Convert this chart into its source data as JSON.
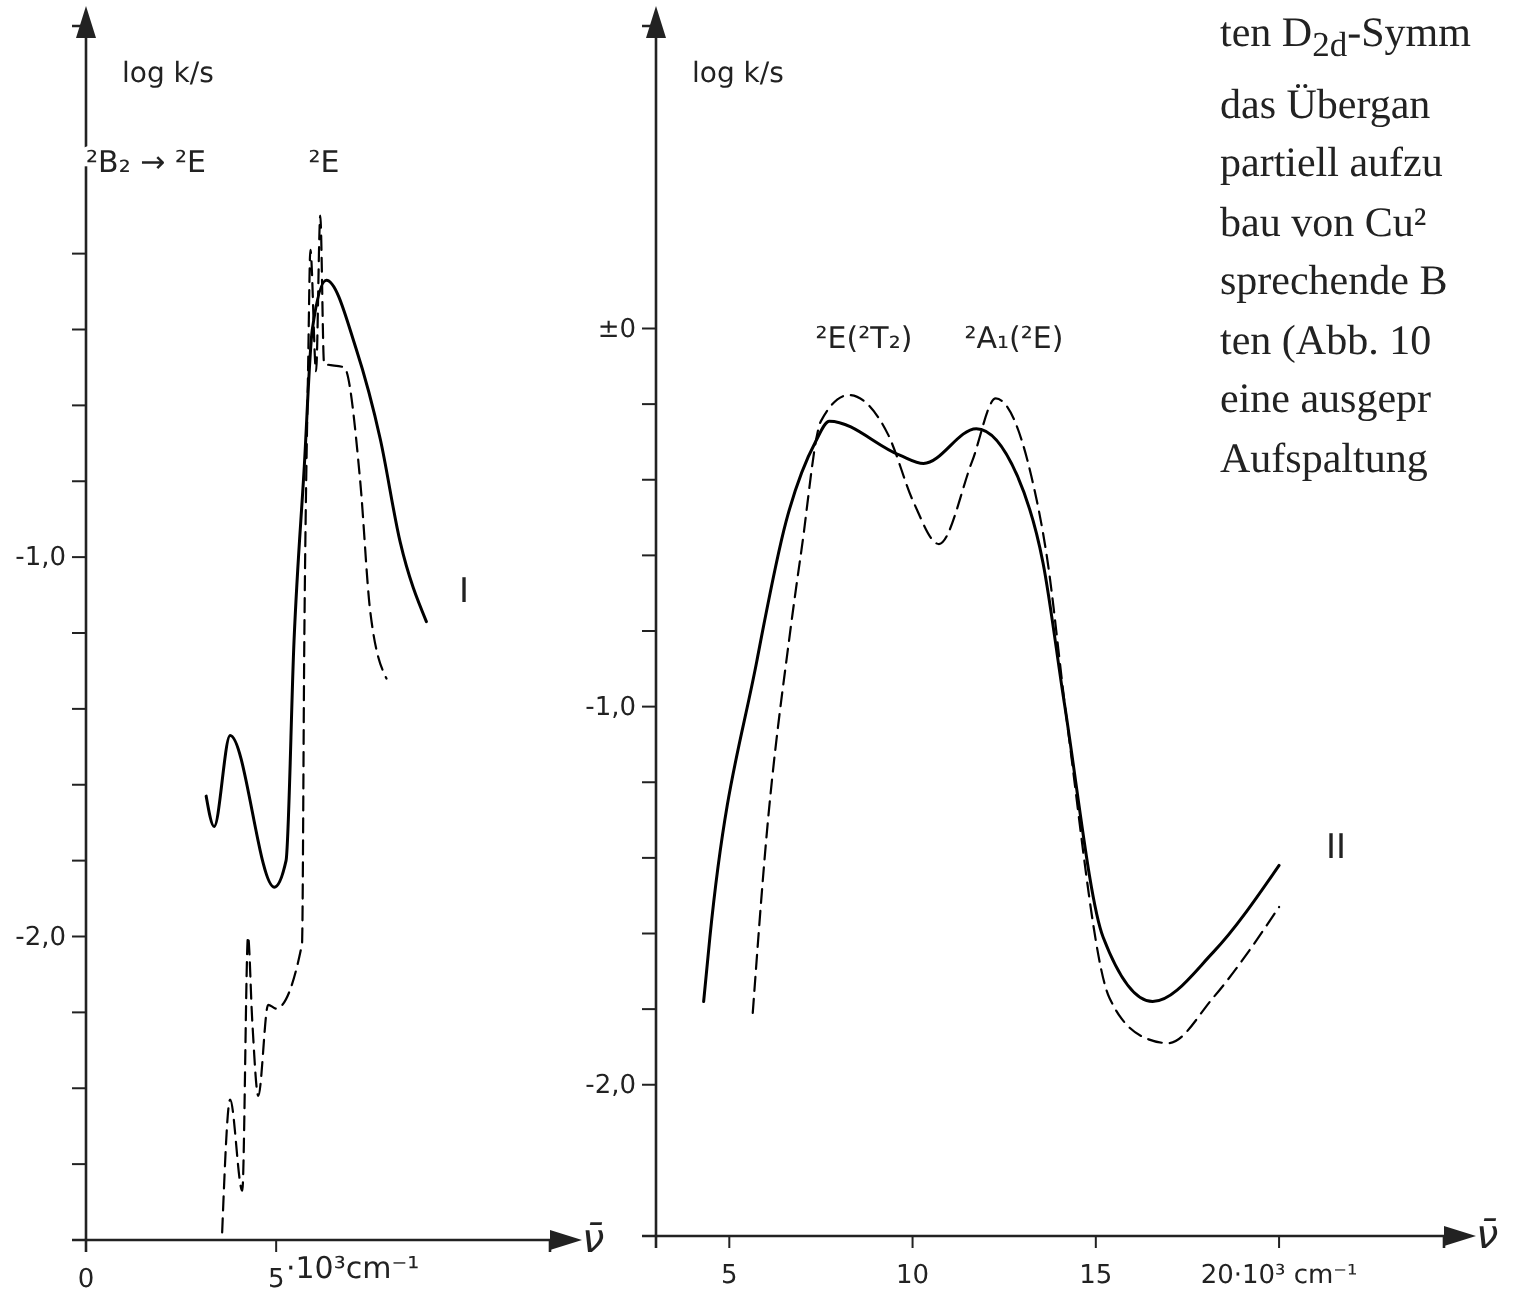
{
  "chart_data": [
    {
      "type": "line",
      "ylabel": "log k/s",
      "xlabel": "ν̄",
      "xlim": [
        0,
        12.2
      ],
      "ylim": [
        -2.8,
        0.4
      ],
      "xticks": [
        0,
        5
      ],
      "yticks": [
        {
          "value": -0.2,
          "label": null
        },
        {
          "value": -0.4,
          "label": null
        },
        {
          "value": -0.6,
          "label": null
        },
        {
          "value": -0.8,
          "label": null
        },
        {
          "value": -1.0,
          "label": "-1,0"
        },
        {
          "value": -1.2,
          "label": null
        },
        {
          "value": -1.4,
          "label": null
        },
        {
          "value": -1.6,
          "label": null
        },
        {
          "value": -1.8,
          "label": null
        },
        {
          "value": -2.0,
          "label": "-2,0"
        },
        {
          "value": -2.2,
          "label": null
        },
        {
          "value": -2.4,
          "label": null
        },
        {
          "value": -2.6,
          "label": null
        }
      ],
      "series": [
        {
          "color": "#000000",
          "line_style": "solid",
          "x": [
            3.16,
            3.37,
            3.79,
            4.95,
            5.26,
            5.47,
            5.74,
            5.95,
            6.32,
            7.1,
            7.74,
            8.26,
            8.95
          ],
          "values": [
            -1.63,
            -1.71,
            -1.47,
            -1.87,
            -1.8,
            -1.22,
            -0.76,
            -0.4,
            -0.27,
            -0.45,
            -0.69,
            -0.96,
            -1.17
          ]
        },
        {
          "color": "#000000",
          "line_style": "dashed",
          "x": [
            3.58,
            3.79,
            4.11,
            4.26,
            4.37,
            4.53,
            4.79,
            5.0,
            5.68,
            5.74,
            5.84,
            5.9,
            6.05,
            6.16,
            6.26,
            6.79,
            7.21,
            7.47,
            7.9
          ],
          "values": [
            -2.78,
            -2.43,
            -2.67,
            -2.0,
            -2.22,
            -2.42,
            -2.18,
            -2.19,
            -2.02,
            -1.22,
            -0.5,
            -0.19,
            -0.51,
            -0.1,
            -0.49,
            -0.5,
            -0.8,
            -1.14,
            -1.32
          ]
        }
      ],
      "annotations": [
        "²B₂ → ²E",
        "²E",
        "I",
        "·10³cm⁻¹"
      ]
    },
    {
      "type": "line",
      "ylabel": "log k/s",
      "xlabel": "ν̄",
      "xlim": [
        3,
        24.5
      ],
      "ylim": [
        -2.4,
        0.8
      ],
      "xticks": [
        5,
        10,
        15,
        {
          "value": 20,
          "label": "20·10³ cm⁻¹"
        }
      ],
      "yticks": [
        {
          "value": 0,
          "label": "±0"
        },
        {
          "value": -0.2,
          "label": null
        },
        {
          "value": -0.4,
          "label": null
        },
        {
          "value": -0.6,
          "label": null
        },
        {
          "value": -0.8,
          "label": null
        },
        {
          "value": -1.0,
          "label": "-1,0"
        },
        {
          "value": -1.2,
          "label": null
        },
        {
          "value": -1.4,
          "label": null
        },
        {
          "value": -1.6,
          "label": null
        },
        {
          "value": -1.8,
          "label": null
        },
        {
          "value": -2.0,
          "label": "-2,0"
        }
      ],
      "series": [
        {
          "color": "#000000",
          "line_style": "solid",
          "x": [
            4.3,
            4.47,
            5.75,
            6.55,
            7.35,
            7.73,
            9.65,
            10.3,
            11.74,
            12.86,
            13.56,
            14.14,
            15.2,
            16.55,
            18.2,
            20.0
          ],
          "values": [
            -1.78,
            -1.61,
            -0.88,
            -0.51,
            -0.3,
            -0.245,
            -0.335,
            -0.357,
            -0.265,
            -0.39,
            -0.62,
            -0.99,
            -1.61,
            -1.78,
            -1.65,
            -1.42
          ]
        },
        {
          "color": "#000000",
          "line_style": "dashed",
          "x": [
            5.64,
            6.0,
            6.65,
            6.97,
            7.5,
            8.26,
            9.33,
            10.03,
            10.72,
            11.63,
            12.27,
            13.24,
            13.66,
            14.2,
            15.37,
            16.44,
            16.98,
            18.2,
            20.0
          ],
          "values": [
            -1.81,
            -1.36,
            -0.81,
            -0.585,
            -0.245,
            -0.176,
            -0.28,
            -0.46,
            -0.57,
            -0.35,
            -0.185,
            -0.39,
            -0.6,
            -1.03,
            -1.77,
            -1.88,
            -1.89,
            -1.77,
            -1.53
          ]
        }
      ],
      "annotations": [
        "²E(²T₂)",
        "²A₁(²E)",
        "II",
        "ten D$_{2d}$-Symm",
        "das Übergan",
        "partiell aufzu",
        "bau von Cu²",
        "sprechende B",
        "ten (Abb. 10",
        "eine ausgepr",
        "Aufspaltung"
      ]
    }
  ]
}
